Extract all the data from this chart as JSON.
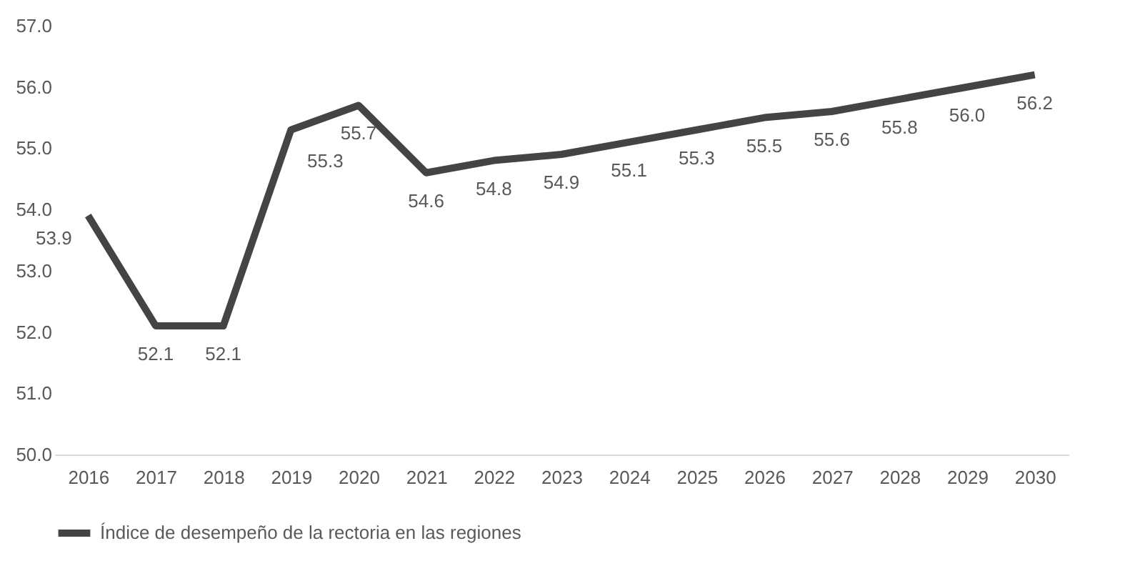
{
  "chart_data": {
    "type": "line",
    "categories": [
      "2016",
      "2017",
      "2018",
      "2019",
      "2020",
      "2021",
      "2022",
      "2023",
      "2024",
      "2025",
      "2026",
      "2027",
      "2028",
      "2029",
      "2030"
    ],
    "series": [
      {
        "name": "Índice de desempeño de la rectoria en las regiones",
        "color": "#444444",
        "values": [
          53.9,
          52.1,
          52.1,
          55.3,
          55.7,
          54.6,
          54.8,
          54.9,
          55.1,
          55.3,
          55.5,
          55.6,
          55.8,
          56.0,
          56.2
        ],
        "value_labels": [
          "53.9",
          "52.1",
          "52.1",
          "55.3",
          "55.7",
          "54.6",
          "54.8",
          "54.9",
          "55.1",
          "55.3",
          "55.5",
          "55.6",
          "55.8",
          "56.0",
          "56.2"
        ]
      }
    ],
    "ylim": [
      50,
      57
    ],
    "yticks": [
      {
        "value": 50,
        "label": "50.0"
      },
      {
        "value": 51,
        "label": "51.0"
      },
      {
        "value": 52,
        "label": "52.0"
      },
      {
        "value": 53,
        "label": "53.0"
      },
      {
        "value": 54,
        "label": "54.0"
      },
      {
        "value": 55,
        "label": "55.0"
      },
      {
        "value": 56,
        "label": "56.0"
      },
      {
        "value": 57,
        "label": "57.0"
      }
    ],
    "grid": false,
    "legend": "bottom",
    "marker": "none",
    "line_style": "solid"
  }
}
